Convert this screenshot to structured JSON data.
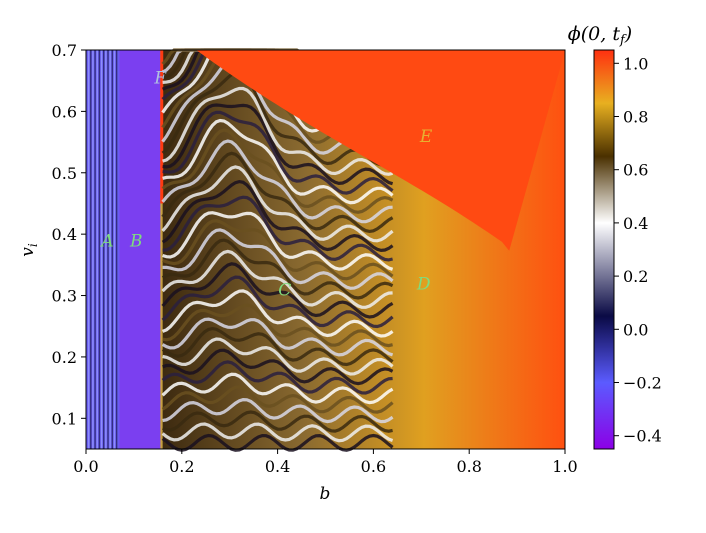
{
  "chart_data": {
    "type": "heatmap",
    "xlabel": "b",
    "ylabel": "v",
    "ylabel_subscript": "i",
    "xlim": [
      0.0,
      1.0
    ],
    "ylim": [
      0.05,
      0.7
    ],
    "xticks": [
      "0.0",
      "0.2",
      "0.4",
      "0.6",
      "0.8",
      "1.0"
    ],
    "yticks": [
      "0.1",
      "0.2",
      "0.3",
      "0.4",
      "0.5",
      "0.6",
      "0.7"
    ],
    "colorbar": {
      "label": "ϕ(0, t_f)",
      "label_main": "ϕ(0, t",
      "label_sub": "f",
      "label_end": ")",
      "range": [
        -0.45,
        1.05
      ],
      "ticks": [
        "−0.4",
        "−0.2",
        "0.0",
        "0.2",
        "0.4",
        "0.6",
        "0.8",
        "1.0"
      ],
      "colormap_stops": [
        {
          "value": -0.45,
          "color": "#8c00e6"
        },
        {
          "value": -0.2,
          "color": "#5b5bff"
        },
        {
          "value": 0.05,
          "color": "#0a0a45"
        },
        {
          "value": 0.4,
          "color": "#ffffff"
        },
        {
          "value": 0.65,
          "color": "#4a3000"
        },
        {
          "value": 0.85,
          "color": "#e8b020"
        },
        {
          "value": 1.05,
          "color": "#ff3010"
        }
      ]
    },
    "region_labels": [
      {
        "text": "A",
        "b": 0.045,
        "v": 0.39,
        "color": "#7fdc7f"
      },
      {
        "text": "B",
        "b": 0.105,
        "v": 0.39,
        "color": "#7fdc7f"
      },
      {
        "text": "C",
        "b": 0.415,
        "v": 0.31,
        "color": "#7fdc7f"
      },
      {
        "text": "D",
        "b": 0.705,
        "v": 0.32,
        "color": "#7fdc7f"
      },
      {
        "text": "E",
        "b": 0.71,
        "v": 0.56,
        "color": "#e8b030"
      },
      {
        "text": "F",
        "b": 0.155,
        "v": 0.655,
        "color": "#b0c0e0"
      }
    ]
  }
}
